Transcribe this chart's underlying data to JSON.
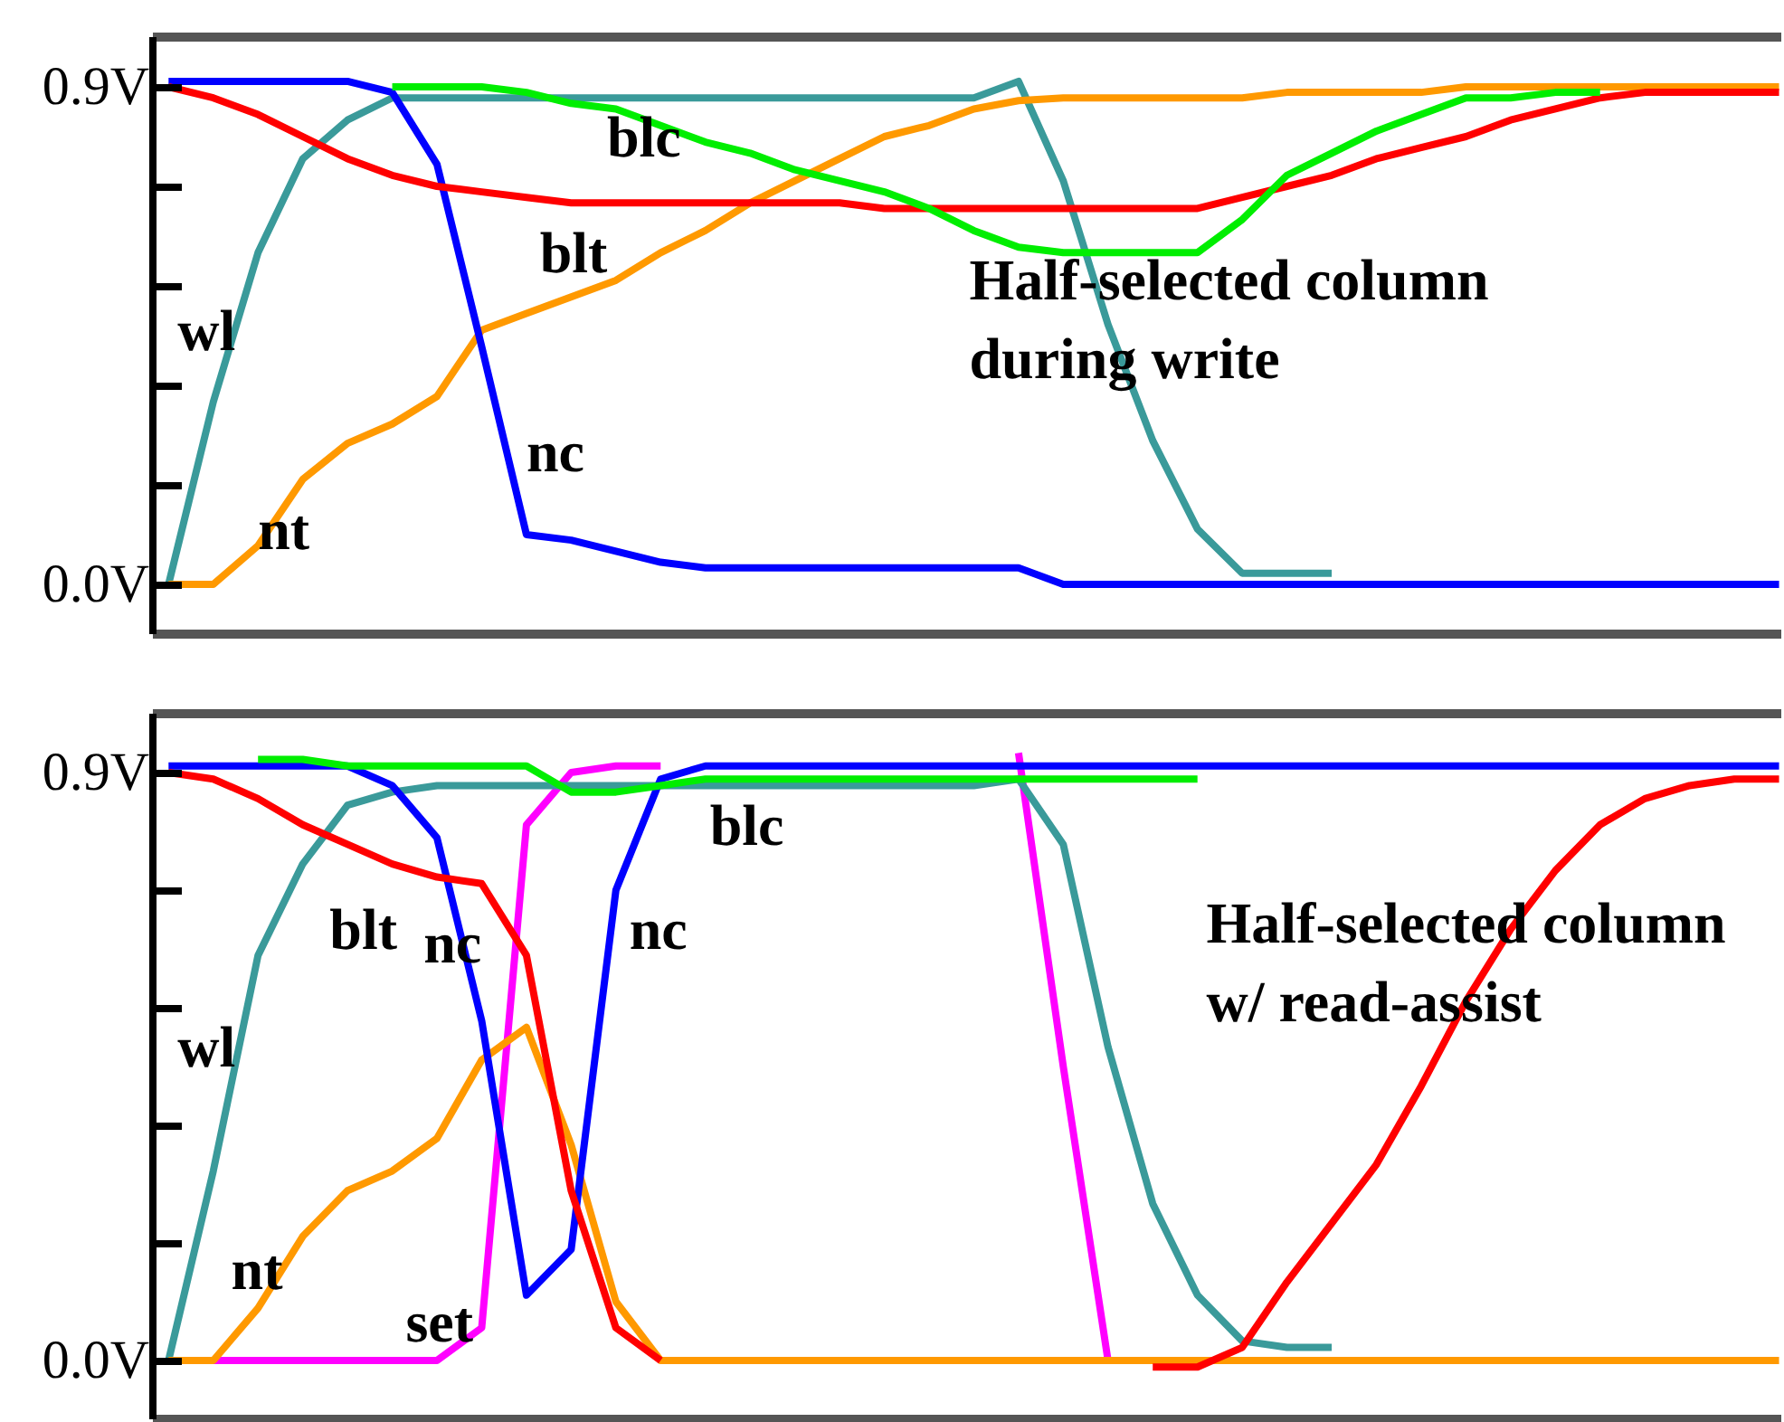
{
  "chart_data": [
    {
      "type": "line",
      "categories": [
        null,
        null,
        null,
        null,
        null,
        null,
        null,
        null,
        null,
        null,
        null,
        null,
        null,
        null,
        null,
        null,
        null,
        null,
        null,
        null,
        null,
        null,
        null,
        null,
        null,
        null,
        null,
        null,
        null,
        null,
        null,
        null,
        null,
        null,
        null,
        null,
        null
      ],
      "ylim": [
        -0.09,
        0.99
      ],
      "yticks": [
        {
          "value": 0,
          "label": "0.0V"
        },
        {
          "value": 0.18,
          "label": null
        },
        {
          "value": 0.36,
          "label": null
        },
        {
          "value": 0.54,
          "label": null
        },
        {
          "value": 0.72,
          "label": null
        },
        {
          "value": 0.9,
          "label": "0.9V"
        }
      ],
      "tick_labels": "y",
      "annotations": [
        "Half-selected column\nduring write"
      ],
      "series": [
        {
          "name": "wl",
          "color": "#3a9a9a",
          "values": [
            0.0,
            0.33,
            0.6,
            0.77,
            0.84,
            0.88,
            0.88,
            0.88,
            0.88,
            0.88,
            0.88,
            0.88,
            0.88,
            0.88,
            0.88,
            0.88,
            0.88,
            0.88,
            0.88,
            0.91,
            0.73,
            0.47,
            0.26,
            0.1,
            0.02,
            0.02,
            0.02,
            null,
            null,
            null,
            null,
            null,
            null,
            null,
            null,
            null,
            null
          ]
        },
        {
          "name": "nt",
          "color": "#ff9900",
          "values": [
            0.0,
            0.0,
            0.07,
            0.19,
            0.255,
            0.29,
            0.34,
            0.46,
            0.49,
            0.52,
            0.55,
            0.6,
            0.64,
            0.69,
            0.73,
            0.77,
            0.81,
            0.83,
            0.86,
            0.875,
            0.88,
            0.88,
            0.88,
            0.88,
            0.88,
            0.89,
            0.89,
            0.89,
            0.89,
            0.9,
            0.9,
            0.9,
            0.9,
            0.9,
            0.9,
            0.9,
            0.9
          ]
        },
        {
          "name": "nc",
          "color": "#0000ff",
          "values": [
            0.91,
            0.91,
            0.91,
            0.91,
            0.91,
            0.89,
            0.76,
            0.43,
            0.09,
            0.08,
            0.06,
            0.04,
            0.03,
            0.03,
            0.03,
            0.03,
            0.03,
            0.03,
            0.03,
            0.03,
            0.0,
            0.0,
            0.0,
            0.0,
            0.0,
            0.0,
            0.0,
            0.0,
            0.0,
            0.0,
            0.0,
            0.0,
            0.0,
            0.0,
            0.0,
            0.0,
            0.0
          ]
        },
        {
          "name": "blt",
          "color": "#ff0000",
          "values": [
            0.9,
            0.88,
            0.85,
            0.81,
            0.77,
            0.74,
            0.72,
            0.71,
            0.7,
            0.69,
            0.69,
            0.69,
            0.69,
            0.69,
            0.69,
            0.69,
            0.68,
            0.68,
            0.68,
            0.68,
            0.68,
            0.68,
            0.68,
            0.68,
            0.7,
            0.72,
            0.74,
            0.77,
            0.79,
            0.81,
            0.84,
            0.86,
            0.88,
            0.89,
            0.89,
            0.89,
            0.89
          ]
        },
        {
          "name": "blc",
          "color": "#00ee00",
          "values": [
            null,
            null,
            null,
            null,
            null,
            0.9,
            0.9,
            0.9,
            0.89,
            0.87,
            0.86,
            0.83,
            0.8,
            0.78,
            0.75,
            0.73,
            0.71,
            0.68,
            0.64,
            0.61,
            0.6,
            0.6,
            0.6,
            0.6,
            0.66,
            0.74,
            0.78,
            0.82,
            0.85,
            0.88,
            0.88,
            0.89,
            0.89,
            null,
            null,
            null,
            null
          ]
        }
      ]
    },
    {
      "type": "line",
      "categories": [
        null,
        null,
        null,
        null,
        null,
        null,
        null,
        null,
        null,
        null,
        null,
        null,
        null,
        null,
        null,
        null,
        null,
        null,
        null,
        null,
        null,
        null,
        null,
        null,
        null,
        null,
        null,
        null,
        null,
        null,
        null,
        null,
        null,
        null,
        null,
        null,
        null
      ],
      "ylim": [
        -0.09,
        0.99
      ],
      "yticks": [
        {
          "value": 0,
          "label": "0.0V"
        },
        {
          "value": 0.18,
          "label": null
        },
        {
          "value": 0.36,
          "label": null
        },
        {
          "value": 0.54,
          "label": null
        },
        {
          "value": 0.72,
          "label": null
        },
        {
          "value": 0.9,
          "label": "0.9V"
        }
      ],
      "tick_labels": "y",
      "annotations": [
        "Half-selected column\nw/ read-assist"
      ],
      "series": [
        {
          "name": "wl",
          "color": "#3a9a9a",
          "values": [
            0.0,
            0.29,
            0.62,
            0.76,
            0.85,
            0.87,
            0.88,
            0.88,
            0.88,
            0.88,
            0.88,
            0.88,
            0.88,
            0.88,
            0.88,
            0.88,
            0.88,
            0.88,
            0.88,
            0.89,
            0.79,
            0.48,
            0.24,
            0.1,
            0.03,
            0.02,
            0.02,
            null,
            null,
            null,
            null,
            null,
            null,
            null,
            null,
            null,
            null
          ]
        },
        {
          "name": "nt",
          "color": "#ff9900",
          "values": [
            0.0,
            0.0,
            0.08,
            0.19,
            0.26,
            0.29,
            0.34,
            0.46,
            0.51,
            0.33,
            0.09,
            0.0,
            0.0,
            0.0,
            0.0,
            0.0,
            0.0,
            0.0,
            0.0,
            0.0,
            0.0,
            0.0,
            0.0,
            0.0,
            0.0,
            0.0,
            0.0,
            0.0,
            0.0,
            0.0,
            0.0,
            0.0,
            0.0,
            0.0,
            0.0,
            0.0,
            0.0
          ]
        },
        {
          "name": "nc",
          "color": "#0000ff",
          "values": [
            0.91,
            0.91,
            0.91,
            0.91,
            0.91,
            0.88,
            0.8,
            0.52,
            0.1,
            0.17,
            0.72,
            0.89,
            0.91,
            0.91,
            0.91,
            0.91,
            0.91,
            0.91,
            0.91,
            0.91,
            0.91,
            0.91,
            0.91,
            0.91,
            0.91,
            0.91,
            0.91,
            0.91,
            0.91,
            0.91,
            0.91,
            0.91,
            0.91,
            0.91,
            0.91,
            0.91,
            0.91
          ]
        },
        {
          "name": "blt",
          "color": "#ff0000",
          "values": [
            0.9,
            0.89,
            0.86,
            0.82,
            0.79,
            0.76,
            0.74,
            0.73,
            0.62,
            0.26,
            0.05,
            0.0,
            null,
            null,
            null,
            null,
            null,
            null,
            null,
            null,
            null,
            null,
            -0.01,
            -0.01,
            0.02,
            0.12,
            0.21,
            0.3,
            0.42,
            0.55,
            0.66,
            0.75,
            0.82,
            0.86,
            0.88,
            0.89,
            0.89
          ]
        },
        {
          "name": "blc",
          "color": "#00ee00",
          "values": [
            null,
            null,
            0.92,
            0.92,
            0.91,
            0.91,
            0.91,
            0.91,
            0.91,
            0.87,
            0.87,
            0.88,
            0.89,
            0.89,
            0.89,
            0.89,
            0.89,
            0.89,
            0.89,
            0.89,
            0.89,
            0.89,
            0.89,
            0.89,
            null,
            null,
            null,
            null,
            null,
            null,
            null,
            null,
            null,
            null,
            null,
            null,
            null
          ]
        },
        {
          "name": "set",
          "color": "#ff00ff",
          "values": [
            null,
            0.0,
            0.0,
            0.0,
            0.0,
            0.0,
            0.0,
            0.05,
            0.82,
            0.9,
            0.91,
            0.91,
            null,
            null,
            null,
            null,
            null,
            null,
            null,
            0.93,
            0.45,
            0.0,
            0.0,
            null,
            null,
            null,
            null,
            null,
            null,
            null,
            null,
            null,
            null,
            null,
            null,
            null,
            null
          ]
        }
      ]
    }
  ]
}
